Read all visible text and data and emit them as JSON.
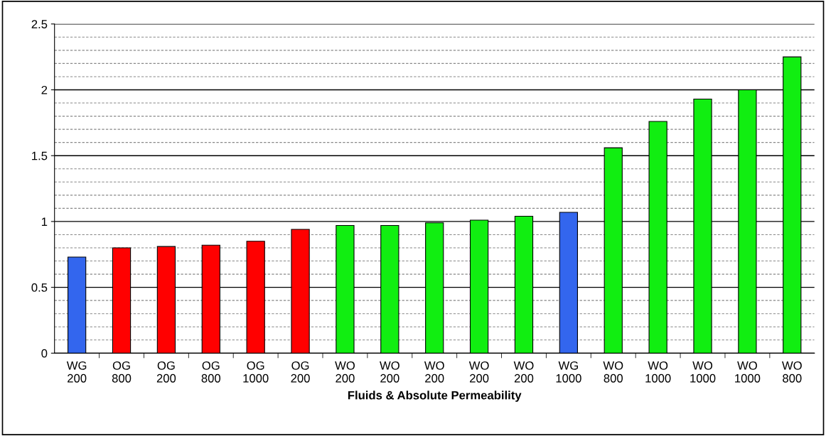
{
  "chart_data": {
    "type": "bar",
    "xlabel": "Fluids & Absolute Permeability",
    "categories": [
      "WG\n200",
      "OG\n800",
      "OG\n200",
      "OG\n800",
      "OG\n1000",
      "OG\n200",
      "WO\n200",
      "WO\n200",
      "WO\n200",
      "WO\n200",
      "WO\n200",
      "WG\n1000",
      "WO\n800",
      "WO\n1000",
      "WO\n1000",
      "WO\n1000",
      "WO\n800"
    ],
    "values": [
      0.73,
      0.8,
      0.81,
      0.82,
      0.85,
      0.94,
      0.97,
      0.97,
      0.99,
      1.01,
      1.04,
      1.07,
      1.56,
      1.76,
      1.93,
      2.0,
      2.25
    ],
    "colors": [
      "#3366ee",
      "#ff0000",
      "#ff0000",
      "#ff0000",
      "#ff0000",
      "#ff0000",
      "#11ee11",
      "#11ee11",
      "#11ee11",
      "#11ee11",
      "#11ee11",
      "#3366ee",
      "#11ee11",
      "#11ee11",
      "#11ee11",
      "#11ee11",
      "#11ee11"
    ],
    "ylim": [
      0,
      2.5
    ],
    "yticks": [
      0,
      0.5,
      1,
      1.5,
      2,
      2.5
    ],
    "grid": "y",
    "legend": false
  }
}
